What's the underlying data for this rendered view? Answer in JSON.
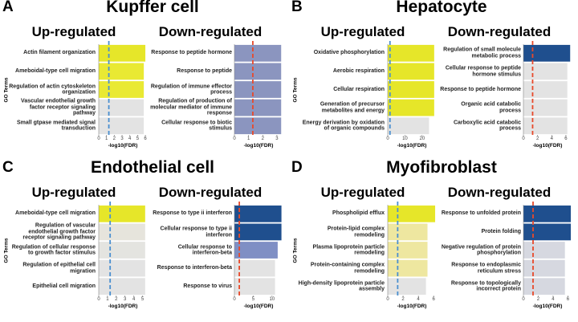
{
  "panels": [
    {
      "letter": "A",
      "title": "Kupffer cell"
    },
    {
      "letter": "B",
      "title": "Hepatocyte"
    },
    {
      "letter": "C",
      "title": "Endothelial cell"
    },
    {
      "letter": "D",
      "title": "Myofibroblast"
    }
  ],
  "chart_data": [
    {
      "type": "bar",
      "title": "Up-regulated",
      "ylabel": "GO Terms",
      "xlabel": "-log10(FDR)",
      "categories": [
        "Actin filament organization",
        "Ameboidal-type cell migration",
        "Regulation of actin cytoskeleton organization",
        "Vascular endothelial growth factor receptor signaling pathway",
        "Small gtpase mediated signal transduction"
      ],
      "values": [
        6.0,
        5.8,
        5.8,
        5.8,
        5.8
      ],
      "colors": [
        "#e6e629",
        "#e9e933",
        "#e9e933",
        "#e3e3e3",
        "#e3e3e3"
      ],
      "xlim": [
        0,
        6.2
      ],
      "xticks": [
        0,
        1,
        2,
        3,
        4,
        5,
        6
      ],
      "threshold": 1.3,
      "threshold_color": "#4a8fd0"
    },
    {
      "type": "bar",
      "title": "Down-regulated",
      "xlabel": "-log10(FDR)",
      "categories": [
        "Response to peptide hormone",
        "Response to peptide",
        "Regulation of immune effector process",
        "Regulation of production of molecular mediator of immune response",
        "Cellular response to biotic stimulus"
      ],
      "values": [
        3.3,
        3.3,
        3.3,
        3.3,
        3.3
      ],
      "colors": [
        "#8b95bf",
        "#8b95bf",
        "#8b95bf",
        "#8b95bf",
        "#8b95bf"
      ],
      "xlim": [
        0,
        3.4
      ],
      "xticks": [
        0,
        1,
        2,
        3
      ],
      "threshold": 1.3,
      "threshold_color": "#e8492a"
    },
    {
      "type": "bar",
      "title": "Up-regulated",
      "ylabel": "GO Terms",
      "xlabel": "-log10(FDR)",
      "categories": [
        "Oxidative phosphorylation",
        "Aerobic respiration",
        "Cellular respiration",
        "Generation of precursor metabolites and energy",
        "Energy derivation by oxidation of organic compounds"
      ],
      "values": [
        27,
        27,
        27,
        27,
        24
      ],
      "colors": [
        "#e6e629",
        "#e6e629",
        "#e6e629",
        "#e6e629",
        "#e3e3e3"
      ],
      "xlim": [
        0,
        28
      ],
      "xticks": [
        0,
        10,
        20
      ],
      "threshold": 1.3,
      "threshold_color": "#4a8fd0"
    },
    {
      "type": "bar",
      "title": "Down-regulated",
      "xlabel": "-log10(FDR)",
      "categories": [
        "Regulation of small molecule metabolic process",
        "Cellular response to peptide hormone stimulus",
        "Response to peptide hormone",
        "Organic acid catabolic process",
        "Carboxylic acid catabolic process"
      ],
      "values": [
        6.6,
        6.2,
        6.2,
        6.2,
        6.2
      ],
      "colors": [
        "#1f4f8e",
        "#e3e3e3",
        "#e3e3e3",
        "#e3e3e3",
        "#e3e3e3"
      ],
      "xlim": [
        0,
        6.8
      ],
      "xticks": [
        0,
        2,
        4,
        6
      ],
      "threshold": 1.3,
      "threshold_color": "#e8492a"
    },
    {
      "type": "bar",
      "title": "Up-regulated",
      "ylabel": "GO Terms",
      "xlabel": "-log10(FDR)",
      "categories": [
        "Ameboidal-type cell migration",
        "Regulation of vascular endothelial growth factor receptor signaling pathway",
        "Regulation of cellular response to growth factor stimulus",
        "Regulation of epithelial cell migration",
        "Epithelial cell migration"
      ],
      "values": [
        5.3,
        5.3,
        5.3,
        5.3,
        5.3
      ],
      "colors": [
        "#e6e629",
        "#e6e4dc",
        "#e4e4e0",
        "#e3e3e3",
        "#e3e3e3"
      ],
      "xlim": [
        0,
        5.5
      ],
      "xticks": [
        0,
        1,
        2,
        3,
        4,
        5
      ],
      "threshold": 1.3,
      "threshold_color": "#4a8fd0"
    },
    {
      "type": "bar",
      "title": "Down-regulated",
      "xlabel": "-log10(FDR)",
      "categories": [
        "Response to type ii interferon",
        "Cellular response to type ii interferon",
        "Cellular response to interferon-beta",
        "Response to interferon-beta",
        "Response to virus"
      ],
      "values": [
        12.5,
        12.5,
        11.5,
        10.8,
        10.8
      ],
      "colors": [
        "#1f4f8e",
        "#1f4f8e",
        "#7f8fc4",
        "#e3e3e3",
        "#e3e3e3"
      ],
      "xlim": [
        0,
        12.8
      ],
      "xticks": [
        0,
        5,
        10
      ],
      "threshold": 1.3,
      "threshold_color": "#e8492a"
    },
    {
      "type": "bar",
      "title": "Up-regulated",
      "ylabel": "GO Terms",
      "xlabel": "-log10(FDR)",
      "categories": [
        "Phospholipid efflux",
        "Protein-lipid complex remodeling",
        "Plasma lipoprotein particle remodeling",
        "Protein-containing complex remodeling",
        "High-density lipoprotein particle assembly"
      ],
      "values": [
        6.2,
        5.2,
        5.2,
        5.2,
        5.0
      ],
      "colors": [
        "#e6e629",
        "#eee7a0",
        "#eee7a0",
        "#eee7a0",
        "#e3e3e3"
      ],
      "xlim": [
        0,
        6.3
      ],
      "xticks": [
        0,
        2,
        4,
        6
      ],
      "threshold": 1.3,
      "threshold_color": "#4a8fd0"
    },
    {
      "type": "bar",
      "title": "Down-regulated",
      "xlabel": "-log10(FDR)",
      "categories": [
        "Response to unfolded protein",
        "Protein folding",
        "Negative regulation of protein phosphorylation",
        "Response to endoplasmic reticulum stress",
        "Response to topologically incorrect protein"
      ],
      "values": [
        6.4,
        6.4,
        5.6,
        5.6,
        5.6
      ],
      "colors": [
        "#1f4f8e",
        "#1f4f8e",
        "#d6d8e0",
        "#d6d8e0",
        "#d6d8e0"
      ],
      "xlim": [
        0,
        6.5
      ],
      "xticks": [
        0,
        2,
        4,
        6
      ],
      "threshold": 1.3,
      "threshold_color": "#e8492a"
    }
  ]
}
